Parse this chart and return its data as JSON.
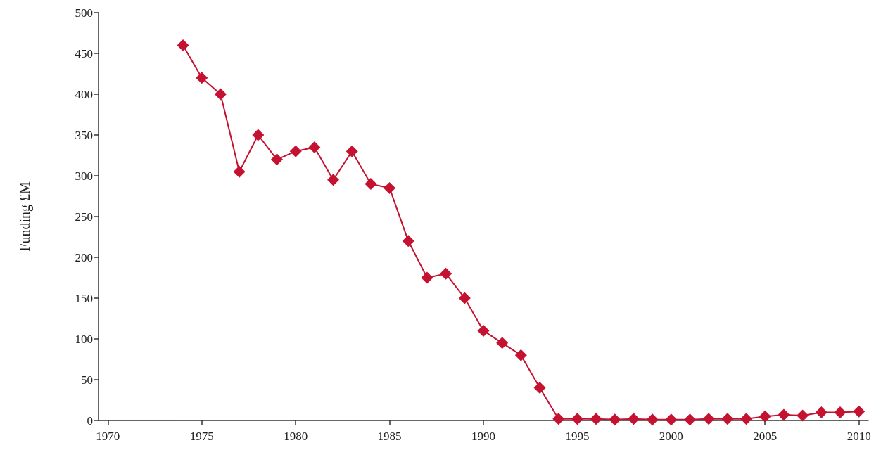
{
  "chart_data": {
    "type": "line",
    "ylabel": "Funding £M",
    "x": [
      1974,
      1975,
      1976,
      1977,
      1978,
      1979,
      1980,
      1981,
      1982,
      1983,
      1984,
      1985,
      1986,
      1987,
      1988,
      1989,
      1990,
      1991,
      1992,
      1993,
      1994,
      1995,
      1996,
      1997,
      1998,
      1999,
      2000,
      2001,
      2002,
      2003,
      2004,
      2005,
      2006,
      2007,
      2008,
      2009,
      2010
    ],
    "series": [
      {
        "color": "#c41230",
        "values": [
          460,
          420,
          400,
          305,
          350,
          320,
          330,
          335,
          295,
          330,
          290,
          285,
          220,
          175,
          180,
          150,
          110,
          95,
          80,
          40,
          2,
          2,
          2,
          1,
          2,
          1,
          1,
          1,
          2,
          2,
          2,
          5,
          7,
          6,
          10,
          10,
          11
        ]
      }
    ],
    "xlim": [
      1969.5,
      2010.5
    ],
    "xticks": [
      1970,
      1975,
      1980,
      1985,
      1990,
      1995,
      2000,
      2005,
      2010
    ],
    "ylim": [
      0,
      500
    ],
    "yticks": [
      0,
      50,
      100,
      150,
      200,
      250,
      300,
      350,
      400,
      450,
      500
    ],
    "grid": false,
    "marker": "diamond",
    "line_style": "solid"
  }
}
